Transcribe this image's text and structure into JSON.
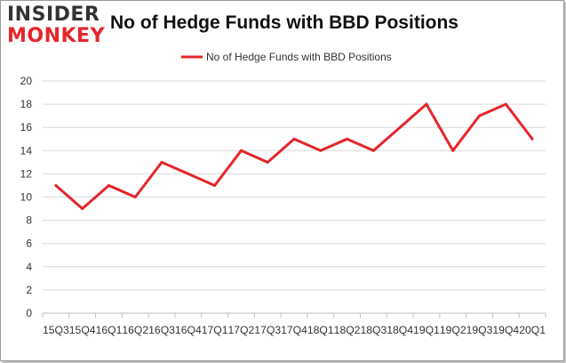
{
  "logo": {
    "line1": "INSIDER",
    "line2": "MONKEY"
  },
  "colors": {
    "series": "#e3262b",
    "grid": "#d9d9d9",
    "axis": "#bfbfbf"
  },
  "chart_data": {
    "type": "line",
    "title": "No of Hedge Funds with BBD Positions",
    "xlabel": "",
    "ylabel": "",
    "legend": "top-center",
    "grid": true,
    "ylim": [
      0,
      20
    ],
    "yticks": [
      0,
      2,
      4,
      6,
      8,
      10,
      12,
      14,
      16,
      18,
      20
    ],
    "categories": [
      "15Q3",
      "15Q4",
      "16Q1",
      "16Q2",
      "16Q3",
      "16Q4",
      "17Q1",
      "17Q2",
      "17Q3",
      "17Q4",
      "18Q1",
      "18Q2",
      "18Q3",
      "18Q4",
      "19Q1",
      "19Q2",
      "19Q3",
      "19Q4",
      "20Q1"
    ],
    "series": [
      {
        "name": "No of Hedge Funds with BBD Positions",
        "values": [
          11,
          9,
          11,
          10,
          13,
          12,
          11,
          14,
          13,
          15,
          14,
          15,
          14,
          16,
          18,
          14,
          17,
          18,
          15
        ]
      }
    ]
  }
}
